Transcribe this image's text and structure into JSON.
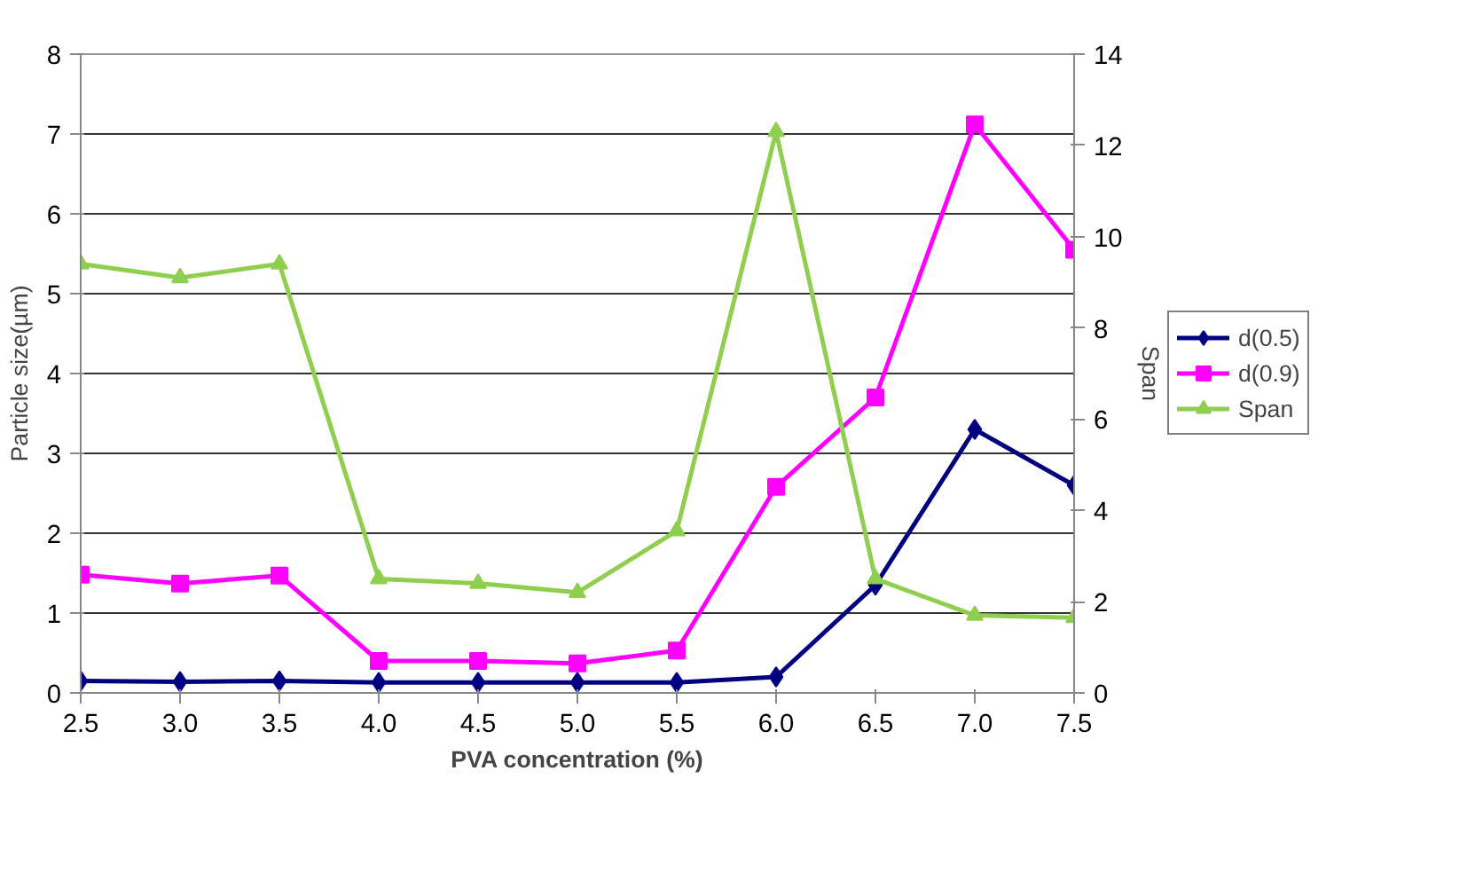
{
  "chart_data": {
    "type": "line",
    "xlabel": "PVA concentration (%)",
    "ylabel": "Particle size(µm)",
    "y2label": "Span",
    "x": [
      2.5,
      3.0,
      3.5,
      4.0,
      4.5,
      5.0,
      5.5,
      6.0,
      6.5,
      7.0,
      7.5
    ],
    "xlim": [
      2.5,
      7.5
    ],
    "xticks": [
      {
        "value": 2.5,
        "label": "2.5"
      },
      {
        "value": 3.0,
        "label": "3.0"
      },
      {
        "value": 3.5,
        "label": "3.5"
      },
      {
        "value": 4.0,
        "label": "4.0"
      },
      {
        "value": 4.5,
        "label": "4.5"
      },
      {
        "value": 5.0,
        "label": "5.0"
      },
      {
        "value": 5.5,
        "label": "5.5"
      },
      {
        "value": 6.0,
        "label": "6.0"
      },
      {
        "value": 6.5,
        "label": "6.5"
      },
      {
        "value": 7.0,
        "label": "7.0"
      },
      {
        "value": 7.5,
        "label": "7.5"
      }
    ],
    "ylim": [
      0,
      8
    ],
    "yticks": [
      0,
      1,
      2,
      3,
      4,
      5,
      6,
      7,
      8
    ],
    "y2lim": [
      0,
      14
    ],
    "y2ticks": [
      0,
      2,
      4,
      6,
      8,
      10,
      12,
      14
    ],
    "grid": "y",
    "legend": "right",
    "line_style": "solid",
    "series": [
      {
        "name": "d(0.5)",
        "color": "#000080",
        "marker": "diamond",
        "values": [
          0.15,
          0.14,
          0.15,
          0.13,
          0.13,
          0.13,
          0.13,
          0.2,
          1.35,
          3.3,
          2.6
        ]
      },
      {
        "name": "d(0.9)",
        "color": "#ff00ff",
        "marker": "square",
        "values": [
          1.48,
          1.37,
          1.47,
          0.4,
          0.4,
          0.37,
          0.53,
          2.58,
          3.7,
          7.12,
          5.55
        ]
      },
      {
        "name": "Span",
        "color": "#8fce4f",
        "marker": "triangle",
        "axis": "y2",
        "values": [
          9.4,
          9.1,
          9.4,
          2.5,
          2.4,
          2.2,
          3.55,
          12.3,
          2.5,
          1.7,
          1.65
        ]
      }
    ]
  }
}
